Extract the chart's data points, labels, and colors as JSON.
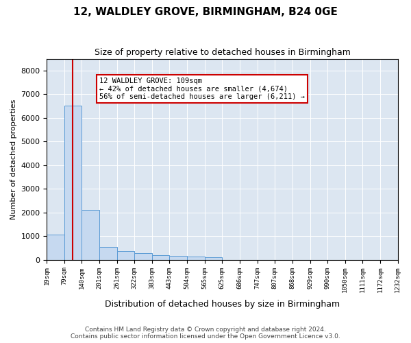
{
  "title": "12, WALDLEY GROVE, BIRMINGHAM, B24 0GE",
  "subtitle": "Size of property relative to detached houses in Birmingham",
  "xlabel": "Distribution of detached houses by size in Birmingham",
  "ylabel": "Number of detached properties",
  "footer_line1": "Contains HM Land Registry data © Crown copyright and database right 2024.",
  "footer_line2": "Contains public sector information licensed under the Open Government Licence v3.0.",
  "bar_edges": [
    19,
    79,
    140,
    201,
    261,
    322,
    383,
    443,
    504,
    565,
    625,
    686,
    747,
    807,
    868,
    929,
    990,
    1050,
    1111,
    1172,
    1232
  ],
  "bar_labels": [
    "19sqm",
    "79sqm",
    "140sqm",
    "201sqm",
    "261sqm",
    "322sqm",
    "383sqm",
    "443sqm",
    "504sqm",
    "565sqm",
    "625sqm",
    "686sqm",
    "747sqm",
    "807sqm",
    "868sqm",
    "929sqm",
    "990sqm",
    "1050sqm",
    "1111sqm",
    "1172sqm",
    "1232sqm"
  ],
  "bar_heights": [
    1050,
    6500,
    2100,
    550,
    350,
    280,
    180,
    150,
    120,
    100,
    0,
    0,
    0,
    0,
    0,
    0,
    0,
    0,
    0,
    0
  ],
  "bar_color": "#c6d9f0",
  "bar_edge_color": "#5b9bd5",
  "property_line_x": 109,
  "property_line_color": "#cc0000",
  "annotation_text": "12 WALDLEY GROVE: 109sqm\n← 42% of detached houses are smaller (4,674)\n56% of semi-detached houses are larger (6,211) →",
  "annotation_box_color": "#cc0000",
  "ylim": [
    0,
    8500
  ],
  "yticks": [
    0,
    1000,
    2000,
    3000,
    4000,
    5000,
    6000,
    7000,
    8000
  ],
  "background_color": "#dce6f1",
  "plot_bg_color": "#dce6f1"
}
